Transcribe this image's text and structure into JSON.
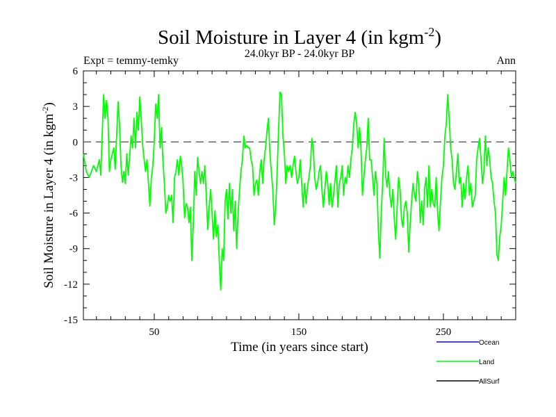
{
  "chart_data": {
    "type": "line",
    "title": "Soil Moisture in Layer 4 (in kgm",
    "title_sup": "-2",
    "title_close": ")",
    "subtitle": "24.0kyr BP - 24.0kyr BP",
    "left_label": "Expt = temmy-temky",
    "right_label": "Ann",
    "xlabel": "Time (in years since start)",
    "ylabel": "Soil Moisture in Layer 4 (in kgm",
    "ylabel_sup": "-2",
    "ylabel_close": ")",
    "xlim": [
      1,
      300
    ],
    "ylim": [
      -15,
      6
    ],
    "xticks": [
      50,
      150,
      250
    ],
    "xtick_labels": [
      "50",
      "150",
      "250"
    ],
    "yticks": [
      6,
      3,
      0,
      -3,
      -6,
      -9,
      -12,
      -15
    ],
    "ytick_labels": [
      "6",
      "3",
      "0",
      "-3",
      "-6",
      "-9",
      "-12",
      "-15"
    ],
    "reference_line": 0,
    "legend": [
      {
        "name": "Ocean",
        "color": "#0000ff"
      },
      {
        "name": "Land",
        "color": "#00ff00"
      },
      {
        "name": "AllSurf",
        "color": "#000000"
      }
    ],
    "series": [
      {
        "name": "Land",
        "color": "#00ff00",
        "keypoints": [
          [
            1,
            -1.0
          ],
          [
            3,
            -2.5
          ],
          [
            5,
            -3.0
          ],
          [
            8,
            -2.0
          ],
          [
            10,
            -2.5
          ],
          [
            12,
            -1.5
          ],
          [
            13,
            -2.8
          ],
          [
            15,
            4.0
          ],
          [
            16,
            2.0
          ],
          [
            17,
            3.5
          ],
          [
            18,
            2.0
          ],
          [
            19,
            -2.5
          ],
          [
            20,
            -1.5
          ],
          [
            22,
            -0.5
          ],
          [
            23,
            -2.3
          ],
          [
            25,
            3.4
          ],
          [
            26,
            1.5
          ],
          [
            27,
            -2.0
          ],
          [
            28,
            -3.4
          ],
          [
            29,
            -2.5
          ],
          [
            30,
            -3.5
          ],
          [
            31,
            -1.0
          ],
          [
            32,
            -2.8
          ],
          [
            33,
            -1.2
          ],
          [
            34,
            0.5
          ],
          [
            35,
            -0.5
          ],
          [
            36,
            2.0
          ],
          [
            37,
            -0.5
          ],
          [
            38,
            2.5
          ],
          [
            39,
            1.0
          ],
          [
            40,
            3.8
          ],
          [
            41,
            2.0
          ],
          [
            42,
            -0.3
          ],
          [
            43,
            -1.5
          ],
          [
            44,
            -2.5
          ],
          [
            45,
            -1.5
          ],
          [
            46,
            -3.5
          ],
          [
            47,
            -5.4
          ],
          [
            48,
            -3.0
          ],
          [
            49,
            -2.0
          ],
          [
            50,
            0.0
          ],
          [
            51,
            3.2
          ],
          [
            52,
            2.0
          ],
          [
            53,
            4.0
          ],
          [
            54,
            -0.5
          ],
          [
            55,
            1.2
          ],
          [
            56,
            -1.5
          ],
          [
            57,
            -3.5
          ],
          [
            58,
            -6.0
          ],
          [
            59,
            -5.5
          ],
          [
            60,
            -4.5
          ],
          [
            61,
            -5.0
          ],
          [
            62,
            -4.5
          ],
          [
            63,
            -6.8
          ],
          [
            64,
            -3.0
          ],
          [
            65,
            -2.5
          ],
          [
            66,
            -1.5
          ],
          [
            67,
            -2.8
          ],
          [
            68,
            -1.2
          ],
          [
            69,
            -2.0
          ],
          [
            70,
            -3.5
          ],
          [
            71,
            -6.4
          ],
          [
            72,
            -5.2
          ],
          [
            73,
            -5.5
          ],
          [
            74,
            -6.8
          ],
          [
            75,
            -5.5
          ],
          [
            76,
            -10.0
          ],
          [
            77,
            -7.0
          ],
          [
            78,
            -2.5
          ],
          [
            79,
            -4.5
          ],
          [
            80,
            -1.3
          ],
          [
            81,
            -2.5
          ],
          [
            82,
            -3.5
          ],
          [
            83,
            -2.5
          ],
          [
            84,
            -3.5
          ],
          [
            85,
            -2.0
          ],
          [
            86,
            -4.5
          ],
          [
            87,
            -7.4
          ],
          [
            88,
            -5.5
          ],
          [
            89,
            -4.0
          ],
          [
            90,
            -6.0
          ],
          [
            91,
            -8.2
          ],
          [
            92,
            -5.8
          ],
          [
            93,
            -8.0
          ],
          [
            94,
            -7.0
          ],
          [
            95,
            -10.0
          ],
          [
            96,
            -12.5
          ],
          [
            97,
            -9.0
          ],
          [
            98,
            -10.0
          ],
          [
            99,
            -5.0
          ],
          [
            100,
            -4.0
          ],
          [
            101,
            -6.5
          ],
          [
            102,
            -3.5
          ],
          [
            103,
            -6.0
          ],
          [
            104,
            -4.0
          ],
          [
            105,
            -7.5
          ],
          [
            106,
            -5.0
          ],
          [
            107,
            -9.0
          ],
          [
            108,
            -6.0
          ],
          [
            109,
            -4.0
          ],
          [
            110,
            -2.5
          ],
          [
            111,
            -1.5
          ],
          [
            112,
            0.5
          ],
          [
            113,
            -0.5
          ],
          [
            114,
            -0.3
          ],
          [
            115,
            -0.5
          ],
          [
            116,
            -0.5
          ],
          [
            117,
            -1.5
          ],
          [
            118,
            -2.0
          ],
          [
            119,
            -4.5
          ],
          [
            120,
            -3.5
          ],
          [
            121,
            -3.2
          ],
          [
            122,
            -4.5
          ],
          [
            123,
            -2.5
          ],
          [
            124,
            -1.5
          ],
          [
            125,
            -3.5
          ],
          [
            126,
            -1.5
          ],
          [
            127,
            -0.5
          ],
          [
            128,
            1.0
          ],
          [
            129,
            2.0
          ],
          [
            130,
            -1.0
          ],
          [
            131,
            -2.5
          ],
          [
            132,
            -4.0
          ],
          [
            133,
            -7.0
          ],
          [
            134,
            -5.5
          ],
          [
            135,
            -2.5
          ],
          [
            136,
            1.0
          ],
          [
            137,
            4.2
          ],
          [
            138,
            4.0
          ],
          [
            139,
            0.5
          ],
          [
            140,
            -1.0
          ],
          [
            141,
            -3.5
          ],
          [
            142,
            -2.0
          ],
          [
            143,
            -2.5
          ],
          [
            144,
            -2.0
          ],
          [
            145,
            -3.0
          ],
          [
            146,
            -2.0
          ],
          [
            147,
            -1.2
          ],
          [
            148,
            -2.5
          ],
          [
            149,
            -3.5
          ],
          [
            150,
            -3.0
          ],
          [
            151,
            -1.5
          ],
          [
            152,
            -3.5
          ],
          [
            153,
            -5.5
          ],
          [
            154,
            -3.5
          ],
          [
            155,
            -5.2
          ],
          [
            156,
            -3.8
          ],
          [
            157,
            -3.0
          ],
          [
            158,
            -2.0
          ],
          [
            159,
            0.3
          ],
          [
            160,
            -0.5
          ],
          [
            161,
            -3.0
          ],
          [
            162,
            -4.0
          ],
          [
            163,
            -3.5
          ],
          [
            164,
            -2.5
          ],
          [
            165,
            -2.0
          ],
          [
            166,
            -4.0
          ],
          [
            167,
            -5.5
          ],
          [
            168,
            -4.0
          ],
          [
            169,
            -2.5
          ],
          [
            170,
            -3.5
          ],
          [
            171,
            -5.3
          ],
          [
            172,
            -3.5
          ],
          [
            173,
            -5.5
          ],
          [
            174,
            -4.5
          ],
          [
            175,
            -3.2
          ],
          [
            176,
            -2.0
          ],
          [
            177,
            -5.5
          ],
          [
            178,
            -3.5
          ],
          [
            179,
            -3.0
          ],
          [
            180,
            -2.0
          ],
          [
            181,
            -4.5
          ],
          [
            182,
            -3.0
          ],
          [
            183,
            -3.5
          ],
          [
            184,
            -2.0
          ],
          [
            185,
            -3.0
          ],
          [
            186,
            -1.5
          ],
          [
            187,
            -0.5
          ],
          [
            188,
            1.5
          ],
          [
            189,
            2.5
          ],
          [
            190,
            1.5
          ],
          [
            191,
            -0.5
          ],
          [
            192,
            1.2
          ],
          [
            193,
            -0.5
          ],
          [
            194,
            -4.5
          ],
          [
            195,
            -3.0
          ],
          [
            196,
            -1.5
          ],
          [
            197,
            -0.5
          ],
          [
            198,
            2.0
          ],
          [
            199,
            -1.5
          ],
          [
            200,
            -1.5
          ],
          [
            201,
            -3.0
          ],
          [
            202,
            -4.5
          ],
          [
            203,
            -2.5
          ],
          [
            204,
            -3.5
          ],
          [
            205,
            -7.5
          ],
          [
            206,
            -9.8
          ],
          [
            207,
            -6.0
          ],
          [
            208,
            -3.5
          ],
          [
            209,
            0.3
          ],
          [
            210,
            -2.8
          ],
          [
            211,
            -3.8
          ],
          [
            212,
            -2.5
          ],
          [
            213,
            -4.5
          ],
          [
            214,
            -5.5
          ],
          [
            215,
            -4.0
          ],
          [
            216,
            -6.5
          ],
          [
            217,
            -8.2
          ],
          [
            218,
            -5.5
          ],
          [
            219,
            -3.0
          ],
          [
            220,
            -4.0
          ],
          [
            221,
            -6.5
          ],
          [
            222,
            -7.2
          ],
          [
            223,
            -5.5
          ],
          [
            224,
            -5.0
          ],
          [
            225,
            -6.0
          ],
          [
            226,
            -9.3
          ],
          [
            227,
            -7.0
          ],
          [
            228,
            -5.0
          ],
          [
            229,
            -3.5
          ],
          [
            230,
            -4.5
          ],
          [
            231,
            -5.0
          ],
          [
            232,
            -2.5
          ],
          [
            233,
            -3.5
          ],
          [
            234,
            -6.8
          ],
          [
            235,
            -5.0
          ],
          [
            236,
            -7.0
          ],
          [
            237,
            -4.0
          ],
          [
            238,
            -3.0
          ],
          [
            239,
            -5.5
          ],
          [
            240,
            -2.0
          ],
          [
            241,
            -5.5
          ],
          [
            242,
            -4.0
          ],
          [
            243,
            -5.2
          ],
          [
            244,
            -5.5
          ],
          [
            245,
            -3.0
          ],
          [
            246,
            -6.0
          ],
          [
            247,
            -7.5
          ],
          [
            248,
            -5.0
          ],
          [
            249,
            -3.0
          ],
          [
            250,
            -2.0
          ],
          [
            251,
            0.5
          ],
          [
            252,
            1.5
          ],
          [
            253,
            4.0
          ],
          [
            254,
            2.0
          ],
          [
            255,
            -0.5
          ],
          [
            256,
            -1.5
          ],
          [
            257,
            -3.5
          ],
          [
            258,
            -4.0
          ],
          [
            259,
            -2.5
          ],
          [
            260,
            -1.0
          ],
          [
            261,
            -3.5
          ],
          [
            262,
            -3.0
          ],
          [
            263,
            -5.5
          ],
          [
            264,
            -3.5
          ],
          [
            265,
            -4.8
          ],
          [
            266,
            -3.0
          ],
          [
            267,
            -2.0
          ],
          [
            268,
            -4.5
          ],
          [
            269,
            -3.5
          ],
          [
            270,
            -5.5
          ],
          [
            271,
            -5.0
          ],
          [
            272,
            -4.5
          ],
          [
            273,
            -1.5
          ],
          [
            274,
            -0.5
          ],
          [
            275,
            0.3
          ],
          [
            276,
            -1.5
          ],
          [
            277,
            -3.5
          ],
          [
            278,
            -2.5
          ],
          [
            279,
            0.5
          ],
          [
            280,
            -2.0
          ],
          [
            281,
            -0.5
          ],
          [
            282,
            -1.5
          ],
          [
            283,
            -3.0
          ],
          [
            284,
            -3.5
          ],
          [
            285,
            -5.0
          ],
          [
            286,
            -6.0
          ],
          [
            287,
            -9.5
          ],
          [
            288,
            -10.0
          ],
          [
            289,
            -8.0
          ],
          [
            290,
            -7.0
          ],
          [
            291,
            -5.0
          ],
          [
            292,
            -3.0
          ],
          [
            293,
            -4.5
          ],
          [
            294,
            -2.5
          ],
          [
            295,
            -0.5
          ],
          [
            296,
            -1.5
          ],
          [
            297,
            -3.0
          ],
          [
            298,
            -2.5
          ],
          [
            299,
            -3.0
          ],
          [
            300,
            -3.5
          ]
        ]
      }
    ]
  }
}
